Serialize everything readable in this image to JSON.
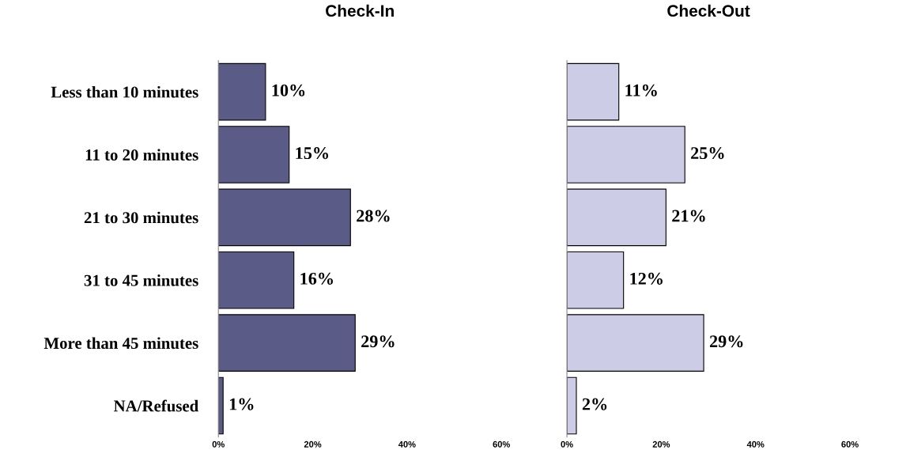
{
  "chart_data": [
    {
      "type": "bar",
      "orientation": "horizontal",
      "title": "Check-In",
      "categories": [
        "Less than 10 minutes",
        "11 to 20 minutes",
        "21 to 30 minutes",
        "31 to 45 minutes",
        "More than 45 minutes",
        "NA/Refused"
      ],
      "values": [
        10,
        15,
        28,
        16,
        29,
        1
      ],
      "color": "#5b5b88",
      "value_labels": [
        "10%",
        "15%",
        "28%",
        "16%",
        "29%",
        "1%"
      ],
      "xlim": [
        0,
        60
      ],
      "xticks": [
        {
          "value": 0,
          "label": "0%"
        },
        {
          "value": 20,
          "label": "20%"
        },
        {
          "value": 40,
          "label": "40%"
        },
        {
          "value": 60,
          "label": "60%"
        }
      ],
      "grid": false,
      "legend": false
    },
    {
      "type": "bar",
      "orientation": "horizontal",
      "title": "Check-Out",
      "categories": [
        null,
        null,
        null,
        null,
        null,
        null
      ],
      "values": [
        11,
        25,
        21,
        12,
        29,
        2
      ],
      "color": "#cccce6",
      "value_labels": [
        "11%",
        "25%",
        "21%",
        "12%",
        "29%",
        "2%"
      ],
      "xlim": [
        0,
        60
      ],
      "xticks": [
        {
          "value": 0,
          "label": "0%"
        },
        {
          "value": 20,
          "label": "20%"
        },
        {
          "value": 40,
          "label": "40%"
        },
        {
          "value": 60,
          "label": "60%"
        }
      ],
      "tick_labels": "x",
      "grid": false,
      "legend": false
    }
  ]
}
